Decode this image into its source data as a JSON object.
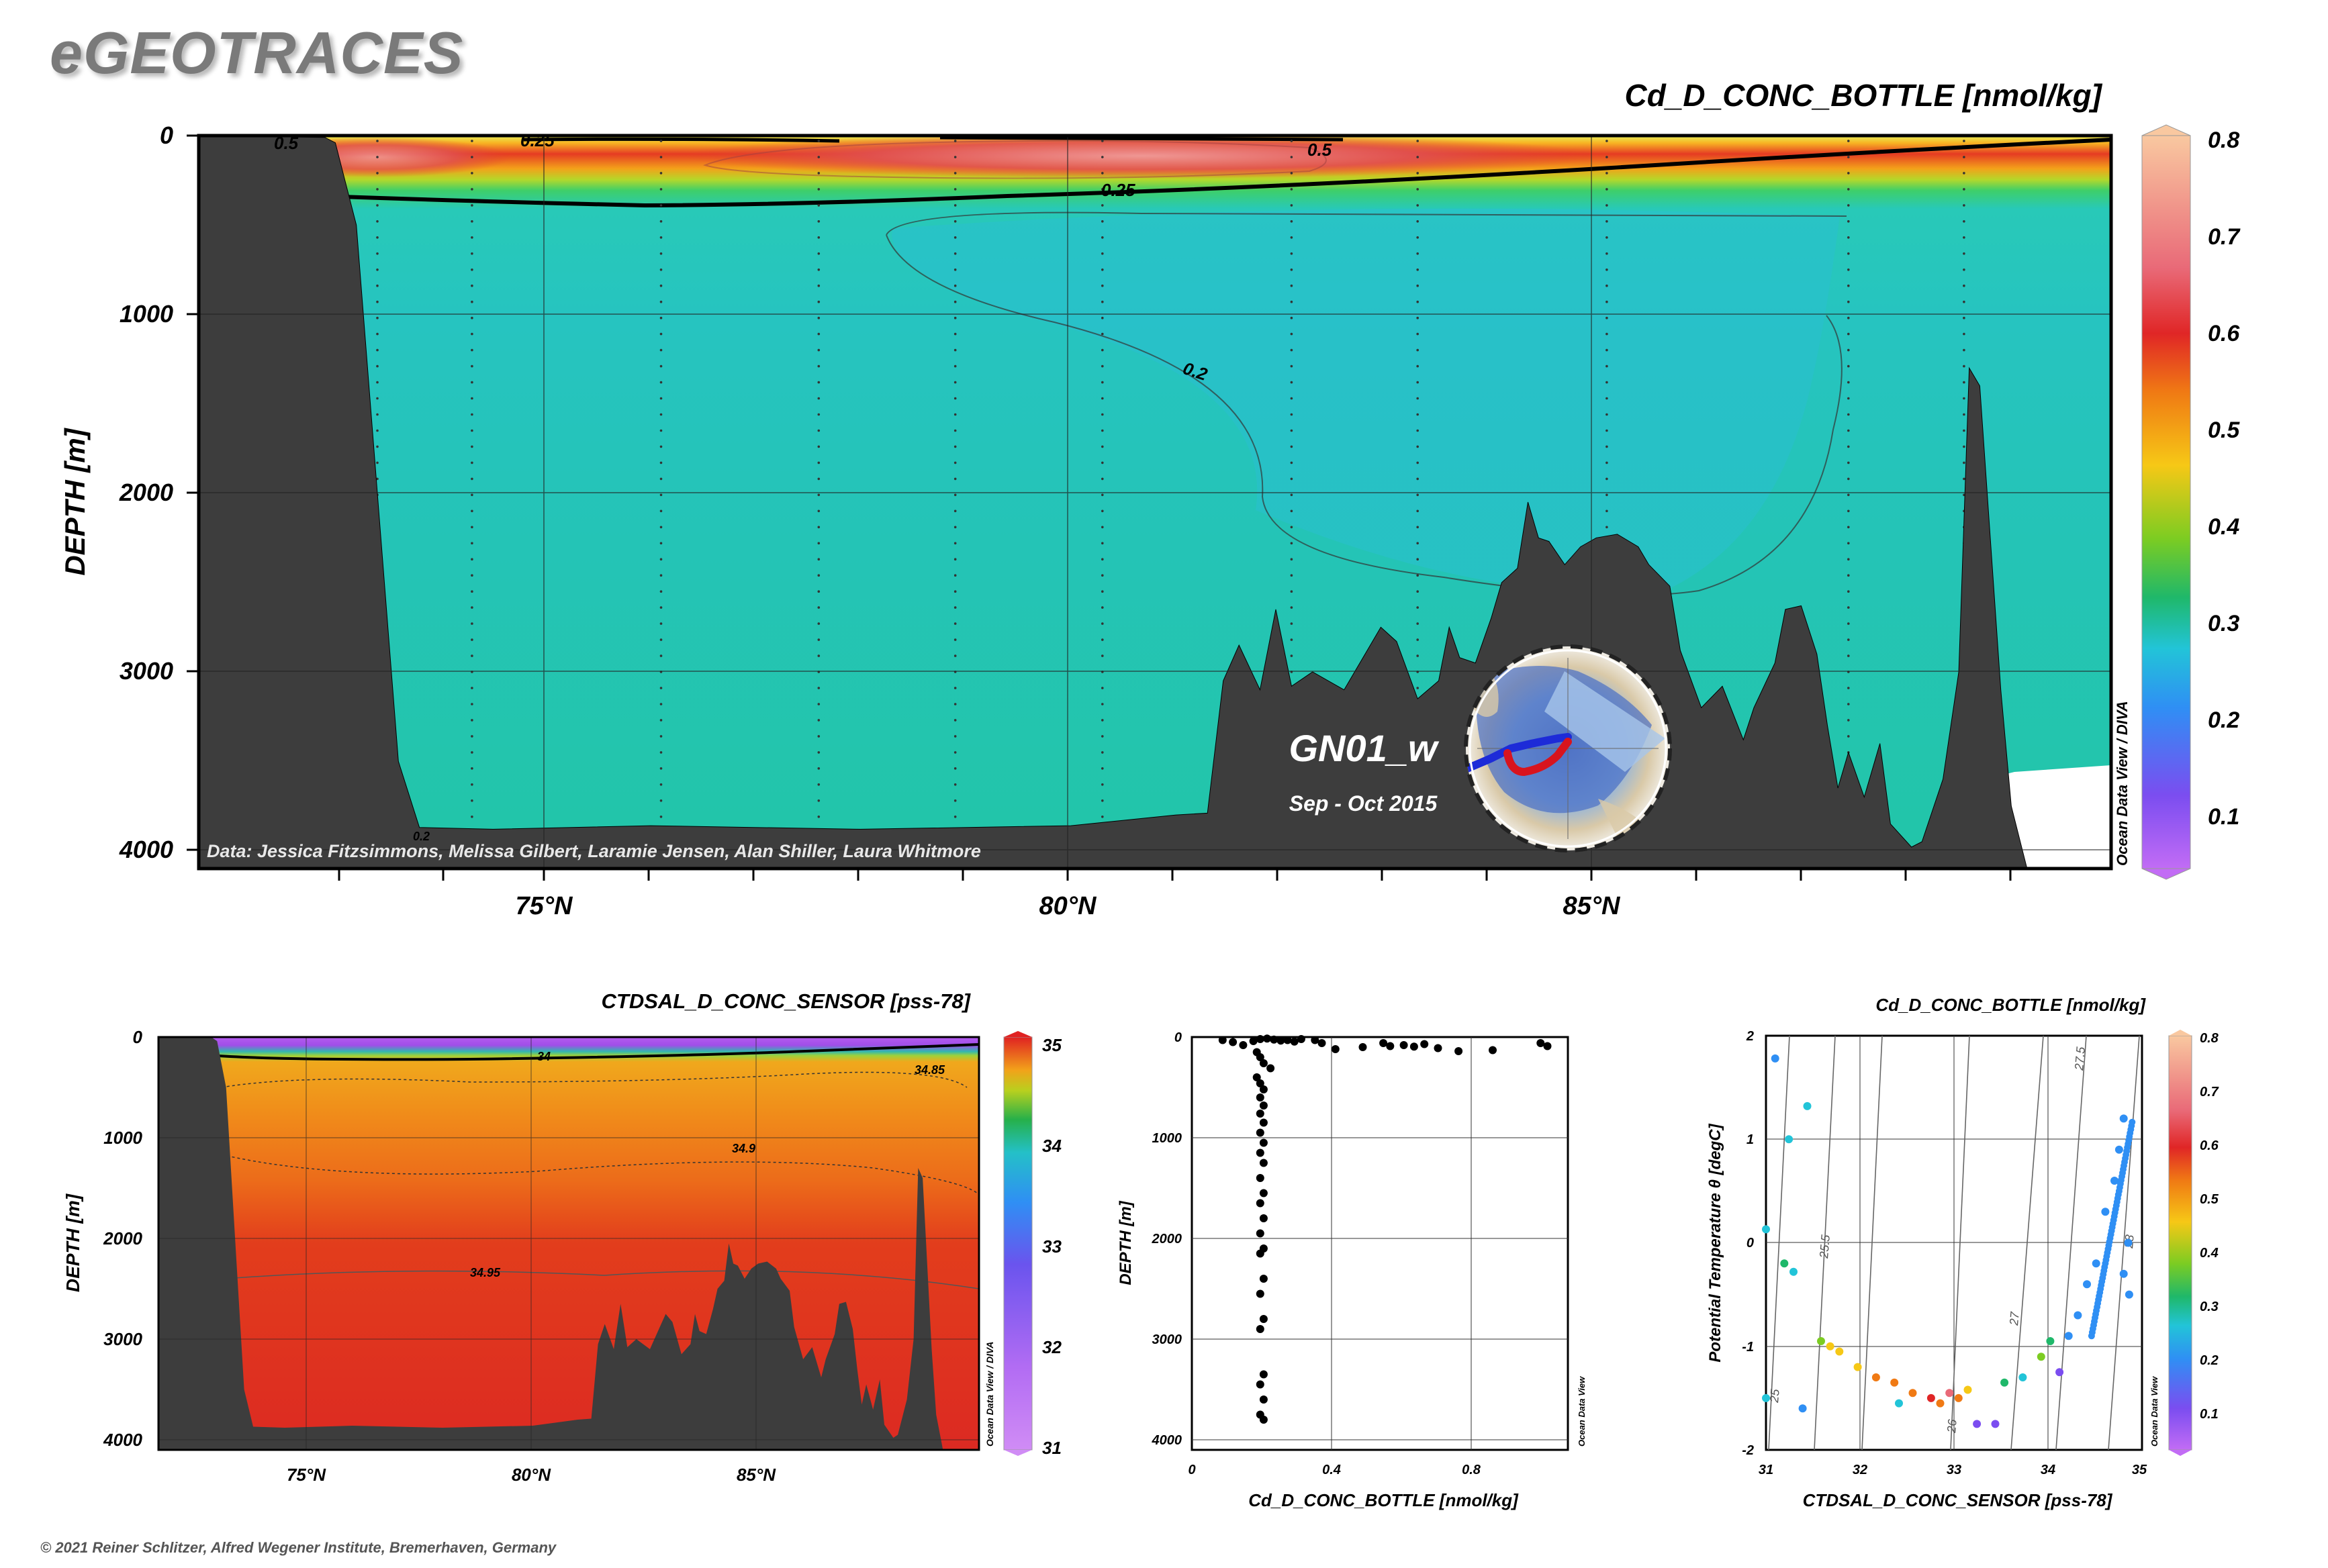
{
  "branding": {
    "logo": "eGEOTRACES",
    "copyright": "© 2021 Reiner Schlitzer, Alfred Wegener Institute, Bremerhaven, Germany"
  },
  "main_section": {
    "title": "Cd_D_CONC_BOTTLE [nmol/kg]",
    "ylabel": "DEPTH [m]",
    "y_ticks": [
      "0",
      "1000",
      "2000",
      "3000",
      "4000"
    ],
    "x_ticks": [
      "75°N",
      "80°N",
      "85°N"
    ],
    "contour_labels": [
      "0.5",
      "0.25",
      "0.5",
      "0.25",
      "0.2",
      "0.2"
    ],
    "credit": "Data: Jessica Fitzsimmons, Melissa Gilbert, Laramie Jensen, Alan Shiller, Laura Whitmore",
    "cruise": "GN01_w",
    "period": "Sep - Oct 2015",
    "side_label": "Ocean Data View / DIVA",
    "colorbar_ticks": [
      "0.8",
      "0.7",
      "0.6",
      "0.5",
      "0.4",
      "0.3",
      "0.2",
      "0.1"
    ]
  },
  "sal_section": {
    "title": "CTDSAL_D_CONC_SENSOR [pss-78]",
    "ylabel": "DEPTH [m]",
    "y_ticks": [
      "0",
      "1000",
      "2000",
      "3000",
      "4000"
    ],
    "x_ticks": [
      "75°N",
      "80°N",
      "85°N"
    ],
    "contour_labels": [
      "34",
      "34.85",
      "34.9",
      "34.95"
    ],
    "side_label": "Ocean Data View / DIVA",
    "colorbar_ticks": [
      "35",
      "34",
      "33",
      "32",
      "31"
    ]
  },
  "profile": {
    "xlabel": "Cd_D_CONC_BOTTLE [nmol/kg]",
    "ylabel": "DEPTH [m]",
    "x_ticks": [
      "0",
      "0.4",
      "0.8"
    ],
    "y_ticks": [
      "0",
      "1000",
      "2000",
      "3000",
      "4000"
    ],
    "side_label": "Ocean Data View"
  },
  "ts_plot": {
    "title": "Cd_D_CONC_BOTTLE [nmol/kg]",
    "xlabel": "CTDSAL_D_CONC_SENSOR [pss-78]",
    "ylabel": "Potential Temperature θ [degC]",
    "x_ticks": [
      "31",
      "32",
      "33",
      "34",
      "35"
    ],
    "y_ticks": [
      "2",
      "1",
      "0",
      "-1",
      "-2"
    ],
    "isopycnal_labels": [
      "25",
      "25.5",
      "26",
      "27",
      "27.5",
      "28"
    ],
    "side_label": "Ocean Data View",
    "colorbar_ticks": [
      "0.8",
      "0.7",
      "0.6",
      "0.5",
      "0.4",
      "0.3",
      "0.2",
      "0.1"
    ]
  },
  "chart_data": [
    {
      "type": "heatmap",
      "title": "Cd_D_CONC_BOTTLE [nmol/kg]",
      "xlabel": "",
      "ylabel": "DEPTH [m]",
      "xlim": [
        71.7,
        89.9
      ],
      "ylim": [
        4100,
        0
      ],
      "colorbar_range": [
        0.05,
        0.8
      ],
      "contours": [
        0.2,
        0.25,
        0.5
      ],
      "seafloor": [
        [
          71.7,
          0
        ],
        [
          72.9,
          10
        ],
        [
          73.0,
          40
        ],
        [
          73.2,
          500
        ],
        [
          73.4,
          2000
        ],
        [
          73.6,
          3500
        ],
        [
          73.8,
          3870
        ],
        [
          74.5,
          3880
        ],
        [
          76,
          3860
        ],
        [
          78,
          3880
        ],
        [
          80,
          3860
        ],
        [
          80.5,
          3830
        ],
        [
          81,
          3800
        ],
        [
          81.3,
          3790
        ],
        [
          81.45,
          3050
        ],
        [
          81.6,
          2850
        ],
        [
          81.8,
          3100
        ],
        [
          81.95,
          2650
        ],
        [
          82.1,
          3080
        ],
        [
          82.3,
          3000
        ],
        [
          82.6,
          3100
        ],
        [
          82.8,
          2900
        ],
        [
          82.95,
          2750
        ],
        [
          83.1,
          2830
        ],
        [
          83.3,
          3150
        ],
        [
          83.5,
          3050
        ],
        [
          83.6,
          2750
        ],
        [
          83.7,
          2920
        ],
        [
          83.85,
          2950
        ],
        [
          84.0,
          2700
        ],
        [
          84.1,
          2500
        ],
        [
          84.25,
          2420
        ],
        [
          84.35,
          2050
        ],
        [
          84.45,
          2250
        ],
        [
          84.55,
          2270
        ],
        [
          84.7,
          2400
        ],
        [
          84.85,
          2300
        ],
        [
          85.0,
          2250
        ],
        [
          85.2,
          2230
        ],
        [
          85.4,
          2300
        ],
        [
          85.5,
          2400
        ],
        [
          85.7,
          2520
        ],
        [
          85.8,
          2880
        ],
        [
          86.0,
          3200
        ],
        [
          86.2,
          3080
        ],
        [
          86.4,
          3380
        ],
        [
          86.5,
          3200
        ],
        [
          86.7,
          2950
        ],
        [
          86.8,
          2650
        ],
        [
          86.95,
          2630
        ],
        [
          87.1,
          2900
        ],
        [
          87.2,
          3300
        ],
        [
          87.3,
          3650
        ],
        [
          87.4,
          3450
        ],
        [
          87.55,
          3700
        ],
        [
          87.7,
          3400
        ],
        [
          87.8,
          3850
        ],
        [
          88.0,
          3980
        ],
        [
          88.1,
          3950
        ],
        [
          88.3,
          3600
        ],
        [
          88.45,
          3000
        ],
        [
          88.55,
          1300
        ],
        [
          88.65,
          1400
        ],
        [
          88.85,
          3100
        ],
        [
          88.95,
          3750
        ],
        [
          89.1,
          4100
        ]
      ],
      "stations": [
        72.8,
        73.4,
        74.3,
        76.1,
        77.6,
        78.9,
        80.3,
        82.1,
        83.3,
        85.1,
        87.4,
        88.5
      ]
    },
    {
      "type": "heatmap",
      "title": "CTDSAL_D_CONC_SENSOR [pss-78]",
      "xlabel": "",
      "ylabel": "DEPTH [m]",
      "xlim": [
        71.7,
        89.9
      ],
      "ylim": [
        4100,
        0
      ],
      "colorbar_range": [
        31,
        35
      ],
      "contours": [
        34,
        34.85,
        34.9,
        34.95
      ]
    },
    {
      "type": "scatter",
      "title": "",
      "xlabel": "Cd_D_CONC_BOTTLE [nmol/kg]",
      "ylabel": "DEPTH [m]",
      "xlim": [
        0,
        1.1
      ],
      "ylim": [
        4100,
        0
      ],
      "points": [
        [
          0.09,
          30
        ],
        [
          0.12,
          50
        ],
        [
          0.15,
          80
        ],
        [
          0.18,
          40
        ],
        [
          0.2,
          20
        ],
        [
          0.22,
          15
        ],
        [
          0.24,
          25
        ],
        [
          0.26,
          35
        ],
        [
          0.28,
          30
        ],
        [
          0.3,
          45
        ],
        [
          0.32,
          20
        ],
        [
          0.36,
          30
        ],
        [
          0.38,
          60
        ],
        [
          0.42,
          120
        ],
        [
          0.5,
          100
        ],
        [
          0.56,
          60
        ],
        [
          0.58,
          90
        ],
        [
          0.62,
          80
        ],
        [
          0.65,
          95
        ],
        [
          0.68,
          70
        ],
        [
          0.72,
          110
        ],
        [
          0.78,
          140
        ],
        [
          0.88,
          130
        ],
        [
          1.02,
          60
        ],
        [
          1.04,
          90
        ],
        [
          0.19,
          150
        ],
        [
          0.2,
          200
        ],
        [
          0.21,
          260
        ],
        [
          0.23,
          310
        ],
        [
          0.19,
          400
        ],
        [
          0.2,
          460
        ],
        [
          0.21,
          520
        ],
        [
          0.2,
          600
        ],
        [
          0.21,
          680
        ],
        [
          0.2,
          760
        ],
        [
          0.21,
          850
        ],
        [
          0.2,
          950
        ],
        [
          0.21,
          1050
        ],
        [
          0.2,
          1150
        ],
        [
          0.21,
          1250
        ],
        [
          0.2,
          1400
        ],
        [
          0.21,
          1550
        ],
        [
          0.2,
          1650
        ],
        [
          0.21,
          1800
        ],
        [
          0.2,
          1950
        ],
        [
          0.21,
          2100
        ],
        [
          0.2,
          2150
        ],
        [
          0.21,
          2400
        ],
        [
          0.2,
          2550
        ],
        [
          0.21,
          2800
        ],
        [
          0.2,
          2900
        ],
        [
          0.21,
          3350
        ],
        [
          0.2,
          3450
        ],
        [
          0.21,
          3600
        ],
        [
          0.2,
          3750
        ],
        [
          0.21,
          3800
        ]
      ]
    },
    {
      "type": "scatter",
      "title": "Cd_D_CONC_BOTTLE [nmol/kg]",
      "xlabel": "CTDSAL_D_CONC_SENSOR [pss-78]",
      "ylabel": "Potential Temperature θ [degC]",
      "xlim": [
        31,
        35.1
      ],
      "ylim": [
        -2,
        2
      ],
      "colorbar_range": [
        0.05,
        0.8
      ],
      "points": [
        [
          31.1,
          1.78,
          0.2
        ],
        [
          31.45,
          1.32,
          0.3
        ],
        [
          31.25,
          1.0,
          0.3
        ],
        [
          31.0,
          0.13,
          0.3
        ],
        [
          31.2,
          -0.2,
          0.35
        ],
        [
          31.3,
          -0.28,
          0.3
        ],
        [
          31.0,
          -1.5,
          0.3
        ],
        [
          31.4,
          -1.6,
          0.2
        ],
        [
          31.6,
          -0.95,
          0.4
        ],
        [
          31.7,
          -1.0,
          0.5
        ],
        [
          31.8,
          -1.05,
          0.45
        ],
        [
          32.0,
          -1.2,
          0.5
        ],
        [
          32.2,
          -1.3,
          0.55
        ],
        [
          32.4,
          -1.35,
          0.55
        ],
        [
          32.45,
          -1.55,
          0.3
        ],
        [
          32.6,
          -1.45,
          0.6
        ],
        [
          32.8,
          -1.5,
          0.65
        ],
        [
          32.9,
          -1.55,
          0.6
        ],
        [
          33.0,
          -1.45,
          0.7
        ],
        [
          33.1,
          -1.5,
          0.6
        ],
        [
          33.2,
          -1.42,
          0.45
        ],
        [
          33.3,
          -1.75,
          0.15
        ],
        [
          33.5,
          -1.75,
          0.15
        ],
        [
          33.6,
          -1.35,
          0.35
        ],
        [
          33.8,
          -1.3,
          0.3
        ],
        [
          34.0,
          -1.1,
          0.4
        ],
        [
          34.1,
          -0.95,
          0.35
        ],
        [
          34.2,
          -1.25,
          0.15
        ],
        [
          34.3,
          -0.9,
          0.2
        ],
        [
          34.4,
          -0.7,
          0.2
        ],
        [
          34.5,
          -0.4,
          0.2
        ],
        [
          34.6,
          -0.2,
          0.2
        ],
        [
          34.7,
          0.3,
          0.2
        ],
        [
          34.8,
          0.6,
          0.2
        ],
        [
          34.85,
          0.9,
          0.2
        ],
        [
          34.9,
          1.2,
          0.2
        ],
        [
          34.95,
          0.0,
          0.2
        ],
        [
          34.96,
          -0.5,
          0.2
        ],
        [
          34.9,
          -0.3,
          0.2
        ]
      ]
    }
  ]
}
